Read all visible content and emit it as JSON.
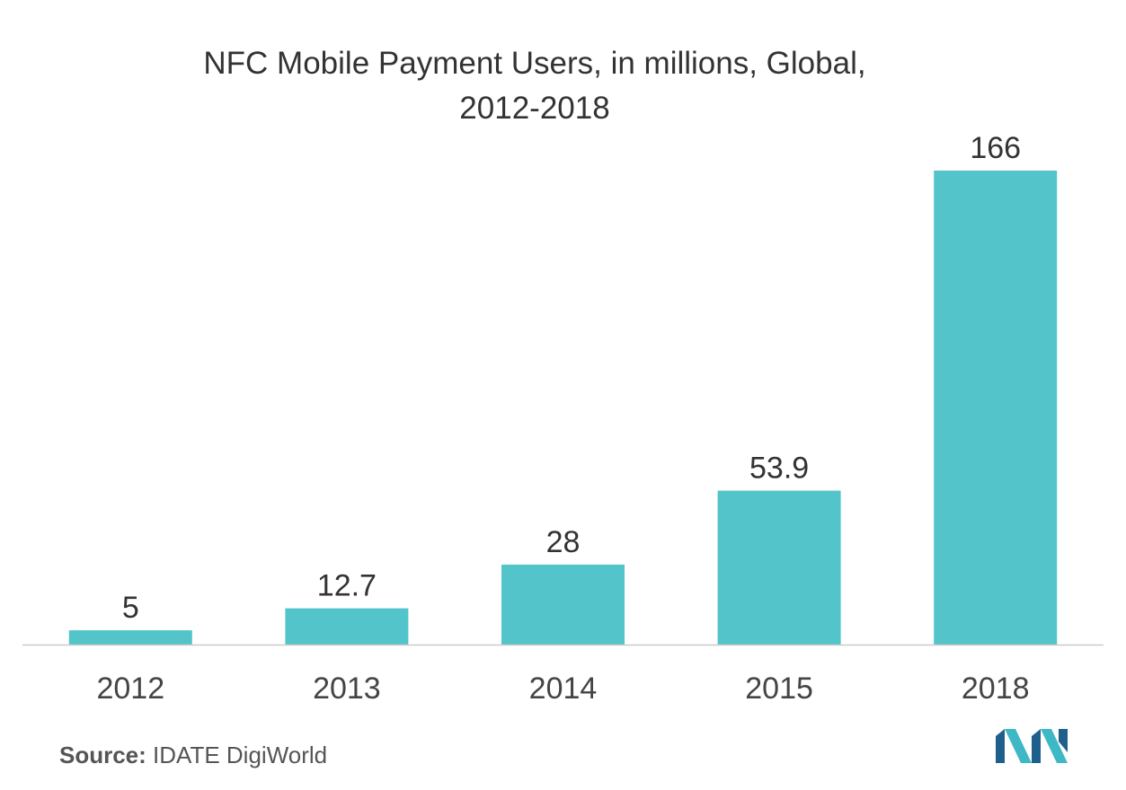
{
  "chart_data": {
    "type": "bar",
    "title_lines": [
      "NFC Mobile Payment Users, in millions, Global,",
      "2012-2018"
    ],
    "categories": [
      "2012",
      "2013",
      "2014",
      "2015",
      "2018"
    ],
    "values": [
      5,
      12.7,
      28,
      53.9,
      166
    ],
    "value_labels": [
      "5",
      "12.7",
      "28",
      "53.9",
      "166"
    ],
    "xlabel": "",
    "ylabel": "",
    "ylim": [
      0,
      166
    ],
    "grid": false,
    "legend": "none",
    "bar_color": "#52c4ca",
    "axis_color": "#cccccc"
  },
  "source": {
    "label": "Source:",
    "text": "IDATE DigiWorld"
  },
  "logo": {
    "icon": "mordor-intelligence-logo-icon",
    "colors": [
      "#1f5f8b",
      "#3fb8c5"
    ]
  }
}
